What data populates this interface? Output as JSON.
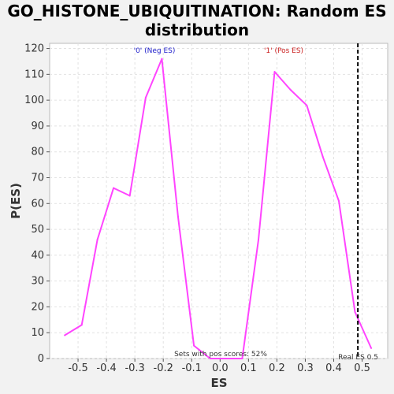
{
  "title_line1": "GO_HISTONE_UBIQUITINATION: Random ES",
  "title_line2": "distribution",
  "chart_data": {
    "type": "line",
    "xlabel": "ES",
    "ylabel": "P(ES)",
    "xlim": [
      -0.6,
      0.59
    ],
    "ylim": [
      0,
      122
    ],
    "xticks": [
      -0.5,
      -0.4,
      -0.3,
      -0.2,
      -0.1,
      0.0,
      0.1,
      0.2,
      0.3,
      0.4,
      0.5
    ],
    "xtick_labels": [
      "-0.5",
      "-0.4",
      "-0.3",
      "-0.2",
      "-0.1",
      "0.0",
      "0.1",
      "0.2",
      "0.3",
      "0.4",
      "0.5"
    ],
    "yticks": [
      0,
      10,
      20,
      30,
      40,
      50,
      60,
      70,
      80,
      90,
      100,
      110,
      120
    ],
    "grid": true,
    "series": [
      {
        "color": "#ff44ff",
        "x": [
          -0.547,
          -0.487,
          -0.432,
          -0.375,
          -0.318,
          -0.262,
          -0.205,
          -0.148,
          -0.092,
          -0.035,
          0.022,
          0.078,
          0.135,
          0.192,
          0.248,
          0.305,
          0.362,
          0.418,
          0.475,
          0.532
        ],
        "y": [
          9,
          13,
          46,
          66,
          63,
          101,
          116,
          55,
          5,
          0,
          0,
          0,
          46,
          111,
          104,
          98,
          78,
          61,
          18,
          4
        ]
      }
    ],
    "real_es": 0.485,
    "annotations": {
      "neg_label": "'0' (Neg ES)",
      "pos_label": "'1' (Pos ES)",
      "pos_scores": "Sets with pos scores: 52%",
      "real_es_label": "Real ES 0.5"
    },
    "colors": {
      "neg": "#2222cc",
      "pos": "#cc2222",
      "line": "#ff44ff"
    }
  }
}
